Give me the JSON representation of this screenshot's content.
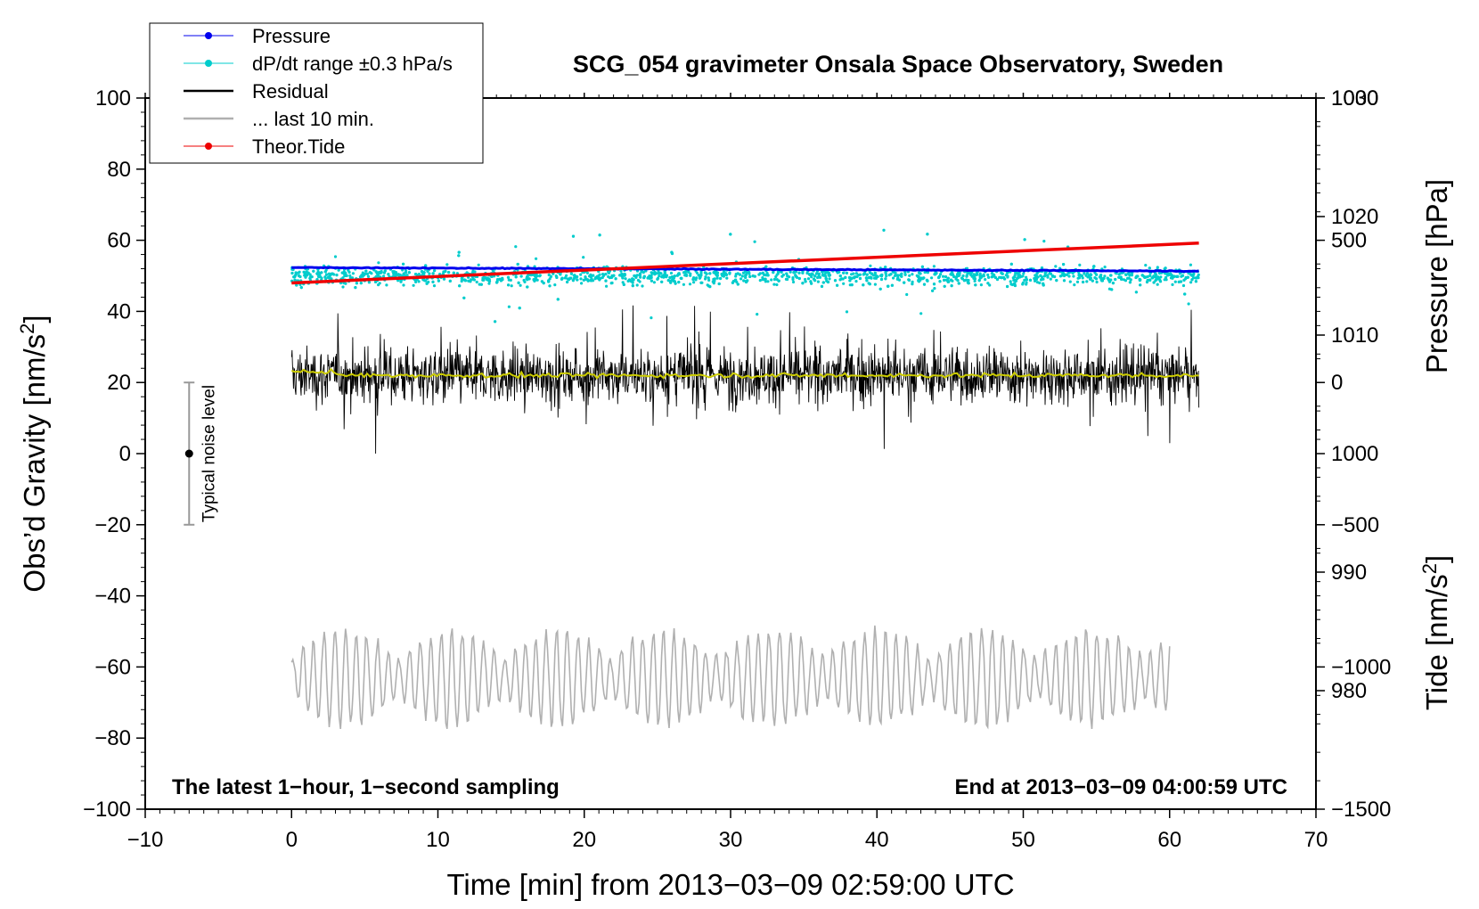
{
  "chart_data": {
    "type": "line",
    "title": "SCG_054 gravimeter Onsala Space Observatory, Sweden",
    "xlabel": "Time [min] from 2013−03−09 02:59:00 UTC",
    "ylabel_left_pre": "Obs’d Gravity [nm/s",
    "ylabel_left_sup": "2",
    "ylabel_left_post": "]",
    "ylabel_right_pressure": "Pressure [hPa]",
    "ylabel_right_tide_pre": "Tide [nm/s",
    "ylabel_right_tide_sup": "2",
    "ylabel_right_tide_post": "]",
    "xlim": [
      -10,
      70
    ],
    "ylim": [
      -100,
      100
    ],
    "pressure_ylim": [
      970,
      1030
    ],
    "tide_ylim": [
      -1500,
      1000
    ],
    "x_ticks": [
      "−10",
      "0",
      "10",
      "20",
      "30",
      "40",
      "50",
      "60",
      "70"
    ],
    "y_ticks": [
      "−100",
      "−80",
      "−60",
      "−40",
      "−20",
      "0",
      "20",
      "40",
      "60",
      "80",
      "100"
    ],
    "pressure_ticks": [
      "980",
      "990",
      "1000",
      "1010",
      "1020",
      "1030"
    ],
    "tide_ticks": [
      "−1500",
      "−1000",
      "−500",
      "0",
      "500",
      "1000"
    ],
    "legend": [
      {
        "label": "Pressure",
        "color": "#0000ee",
        "style": "line-dot"
      },
      {
        "label": "dP/dt range ±0.3 hPa/s",
        "color": "#00cccc",
        "style": "line-dot"
      },
      {
        "label": "Residual",
        "color": "#000000",
        "style": "line"
      },
      {
        "label": "... last 10 min.",
        "color": "#b0b0b0",
        "style": "line"
      },
      {
        "label": "Theor.Tide",
        "color": "#ee0000",
        "style": "line-dot"
      }
    ],
    "annotations": {
      "bottom_left": "The latest 1−hour, 1−second sampling",
      "bottom_right": "End at 2013−03−09 04:00:59 UTC",
      "noise_label": "Typical noise level"
    },
    "noise_bar": {
      "x": -7,
      "center": 0,
      "low": -20,
      "high": 20
    },
    "series": [
      {
        "name": "Pressure",
        "axis": "pressure",
        "color": "#0000ee",
        "x_range": [
          0,
          62
        ],
        "y_start": 1015.7,
        "y_end": 1015.4
      },
      {
        "name": "dP/dt range",
        "axis": "left",
        "color": "#00cccc",
        "x_range": [
          0,
          62
        ],
        "center": 50,
        "spread": 3
      },
      {
        "name": "Residual",
        "axis": "left",
        "color": "#000000",
        "x_range": [
          0,
          62
        ],
        "center": 22,
        "spread": 10
      },
      {
        "name": "Residual smoothed",
        "axis": "left",
        "color": "#cccc00",
        "x_range": [
          0,
          62
        ],
        "center": 22
      },
      {
        "name": "Theor.Tide",
        "axis": "tide",
        "color": "#ee0000",
        "x_range": [
          0,
          62
        ],
        "y_start": 350,
        "y_end": 490
      },
      {
        "name": "... last 10 min.",
        "axis": "left",
        "color": "#b0b0b0",
        "x_range": [
          0,
          60
        ],
        "center": -63,
        "spread": 10
      }
    ]
  }
}
